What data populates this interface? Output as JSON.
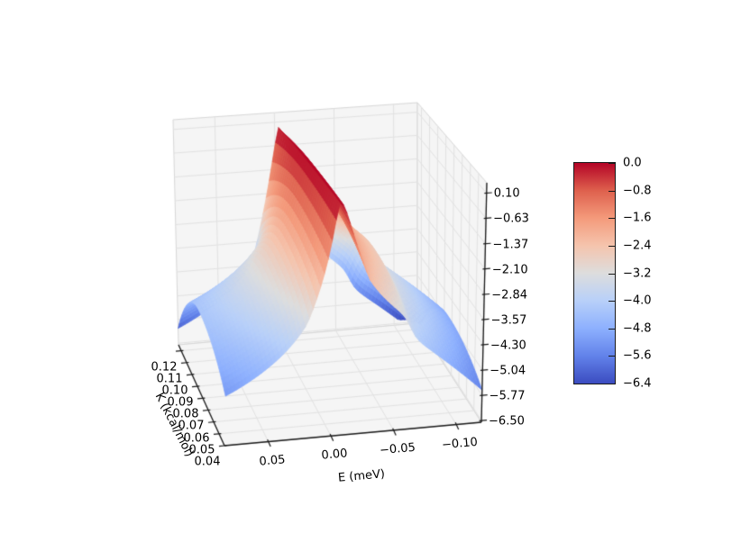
{
  "figure": {
    "background": "#ffffff"
  },
  "chart_data": {
    "type": "surface3d",
    "title": "",
    "xlabel": "E (meV)",
    "ylabel": "K (kcal/mol)",
    "zlabel": "",
    "colormap": "coolwarm",
    "x_axis": {
      "label": "E (meV)",
      "data_range": [
        0.085,
        -0.12
      ],
      "reversed": true,
      "ticks": [
        {
          "value": 0.05,
          "label": "0.05"
        },
        {
          "value": 0.0,
          "label": "0.00"
        },
        {
          "value": -0.05,
          "label": "−0.05"
        },
        {
          "value": -0.1,
          "label": "−0.10"
        }
      ]
    },
    "y_axis": {
      "label": "K (kcal/mol)",
      "data_range": [
        0.04,
        0.125
      ],
      "ticks": [
        {
          "value": 0.04,
          "label": "0.04"
        },
        {
          "value": 0.05,
          "label": "0.05"
        },
        {
          "value": 0.06,
          "label": "0.06"
        },
        {
          "value": 0.07,
          "label": "0.07"
        },
        {
          "value": 0.08,
          "label": "0.08"
        },
        {
          "value": 0.09,
          "label": "0.09"
        },
        {
          "value": 0.1,
          "label": "0.10"
        },
        {
          "value": 0.11,
          "label": "0.11"
        },
        {
          "value": 0.12,
          "label": "0.12"
        }
      ]
    },
    "z_axis": {
      "data_range": [
        -6.55,
        0.4
      ],
      "ticks": [
        {
          "value": 0.1,
          "label": "0.10"
        },
        {
          "value": -0.63,
          "label": "−0.63"
        },
        {
          "value": -1.37,
          "label": "−1.37"
        },
        {
          "value": -2.1,
          "label": "−2.10"
        },
        {
          "value": -2.84,
          "label": "−2.84"
        },
        {
          "value": -3.57,
          "label": "−3.57"
        },
        {
          "value": -4.3,
          "label": "−4.30"
        },
        {
          "value": -5.04,
          "label": "−5.04"
        },
        {
          "value": -5.77,
          "label": "−5.77"
        },
        {
          "value": -6.5,
          "label": "−6.50"
        }
      ]
    },
    "colorbar": {
      "vmin": -6.4,
      "vmax": 0.0,
      "ticks": [
        {
          "value": 0.0,
          "label": "0.0"
        },
        {
          "value": -0.8,
          "label": "−0.8"
        },
        {
          "value": -1.6,
          "label": "−1.6"
        },
        {
          "value": -2.4,
          "label": "−2.4"
        },
        {
          "value": -3.2,
          "label": "−3.2"
        },
        {
          "value": -4.0,
          "label": "−4.0"
        },
        {
          "value": -4.8,
          "label": "−4.8"
        },
        {
          "value": -5.6,
          "label": "−5.6"
        },
        {
          "value": -6.4,
          "label": "−6.4"
        }
      ]
    },
    "colormap_stops": [
      {
        "t": 0.0,
        "hex": "#3b4cc0"
      },
      {
        "t": 0.125,
        "hex": "#6282ea"
      },
      {
        "t": 0.25,
        "hex": "#8db0fe"
      },
      {
        "t": 0.375,
        "hex": "#b8d0f9"
      },
      {
        "t": 0.5,
        "hex": "#dddddd"
      },
      {
        "t": 0.625,
        "hex": "#f5c4ad"
      },
      {
        "t": 0.75,
        "hex": "#f49a7b"
      },
      {
        "t": 0.875,
        "hex": "#de604d"
      },
      {
        "t": 1.0,
        "hex": "#b40426"
      }
    ],
    "surface_model": {
      "description": "log10-scale resonance ridge: z peaks at 0.0 along E=E0 for all K, log-Lorentzian flanks; broader right flank with a shelf step near E=-0.062, steep tail to the right edge, and wings drooping toward front (K=0.04) and back (K=0.125) rows",
      "E0": -0.004,
      "log_scale": 1.67,
      "gamma_left": 0.004,
      "gamma_left_K_slope": 0.0015,
      "gamma_right": 0.009,
      "shelf_E": -0.062,
      "shelf_width": 0.0025,
      "shelf_depth": 0.45,
      "tail_start": 0.045,
      "tail_coef": 150,
      "droop_front": 0.7,
      "droop_back": 2.0,
      "droop_pivot": 0.55,
      "droop_onset": 0.025,
      "z_min": -6.4,
      "z_max": 0.0
    },
    "representative_profile_at_K_0.04": [
      {
        "E": 0.085,
        "z": -5.2
      },
      {
        "E": 0.05,
        "z": -4.5
      },
      {
        "E": 0.02,
        "z": -3.3
      },
      {
        "E": 0.005,
        "z": -1.6
      },
      {
        "E": -0.004,
        "z": 0.0
      },
      {
        "E": -0.02,
        "z": -1.5
      },
      {
        "E": -0.04,
        "z": -2.8
      },
      {
        "E": -0.062,
        "z": -3.7
      },
      {
        "E": -0.08,
        "z": -4.4
      },
      {
        "E": -0.1,
        "z": -5.0
      },
      {
        "E": -0.12,
        "z": -5.6
      }
    ]
  },
  "view": {
    "corners": {
      "c000": [
        249,
        495
      ],
      "c100": [
        534,
        469
      ],
      "c010": [
        198,
        383
      ],
      "c110": [
        463,
        359
      ],
      "c001": [
        255,
        212
      ],
      "c101": [
        540,
        203
      ],
      "c011": [
        192,
        133
      ],
      "c111": [
        463,
        114
      ]
    },
    "grid_n": {
      "nE": 72,
      "nK": 34
    },
    "colors": {
      "pane": "#f5f5f5",
      "pane_edge": "#d8d8d8",
      "grid": "#e2e2e2",
      "axis": "#1a1a1a",
      "text": "#000000",
      "background": "#ffffff"
    }
  }
}
